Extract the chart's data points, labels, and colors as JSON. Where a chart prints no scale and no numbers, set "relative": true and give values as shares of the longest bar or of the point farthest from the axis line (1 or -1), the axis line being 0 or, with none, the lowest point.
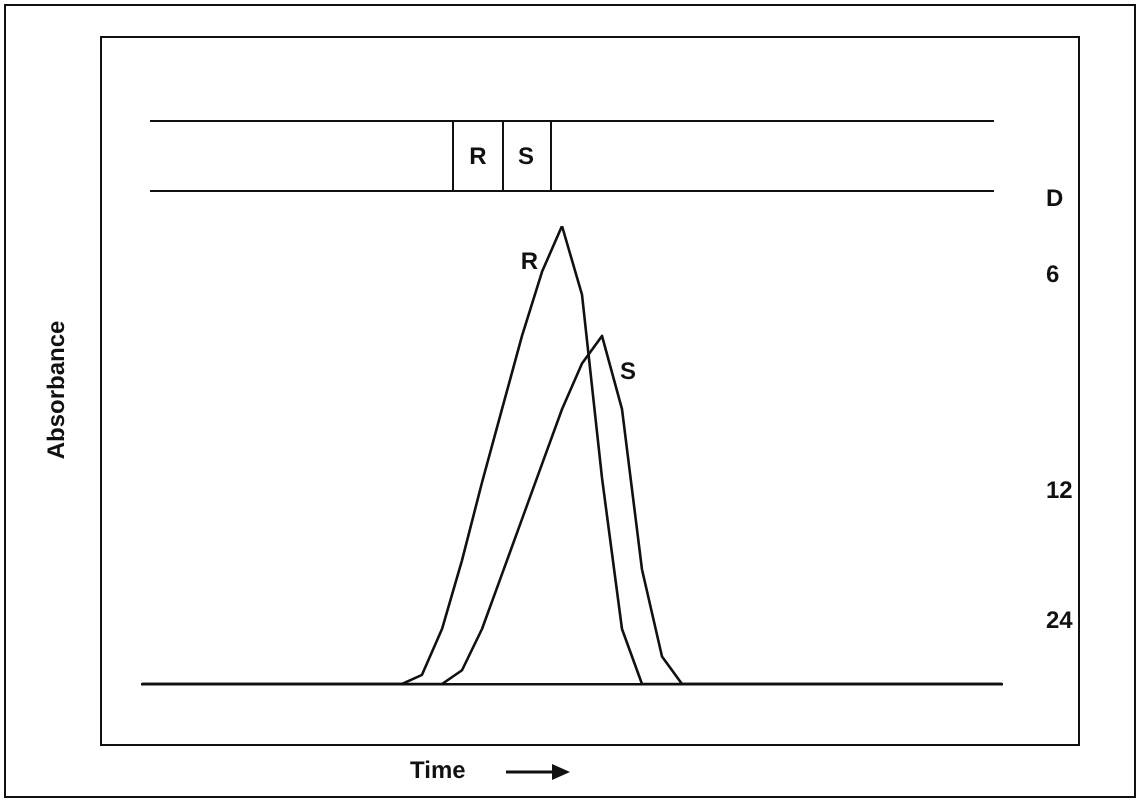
{
  "chart_data": {
    "type": "line",
    "relative": true,
    "xlabel": "Time",
    "ylabel": "Absorbance",
    "legend": false,
    "grid": false,
    "marker": "none",
    "line_style": "solid",
    "categories": [
      null,
      null,
      null,
      null,
      null,
      null,
      null,
      null,
      null,
      null,
      null,
      null,
      null,
      null,
      null,
      null,
      null,
      null,
      null,
      null,
      null,
      null,
      null,
      null,
      null,
      null,
      null,
      null,
      null,
      null,
      null,
      null,
      null,
      null,
      null,
      null,
      null,
      null,
      null,
      null,
      null,
      null,
      null,
      null
    ],
    "series": [
      {
        "name": "R",
        "color": "#111111",
        "values": [
          0,
          0,
          0,
          0,
          0,
          0,
          0,
          0,
          0,
          0,
          0,
          0,
          0,
          0,
          0.02,
          0.12,
          0.27,
          0.44,
          0.6,
          0.76,
          0.9,
          1,
          0.85,
          0.45,
          0.12,
          0,
          0,
          0,
          0,
          0,
          0,
          0,
          0,
          0,
          0,
          0,
          0,
          0,
          0,
          0,
          0,
          0,
          0,
          0
        ]
      },
      {
        "name": "S",
        "color": "#111111",
        "values": [
          0,
          0,
          0,
          0,
          0,
          0,
          0,
          0,
          0,
          0,
          0,
          0,
          0,
          0,
          0,
          0,
          0.03,
          0.12,
          0.24,
          0.36,
          0.48,
          0.6,
          0.7,
          0.76,
          0.6,
          0.25,
          0.06,
          0,
          0,
          0,
          0,
          0,
          0,
          0,
          0,
          0,
          0,
          0,
          0,
          0,
          0,
          0,
          0,
          0
        ]
      }
    ],
    "annotations": [
      "R",
      "S",
      "D",
      "6",
      "12",
      "24"
    ]
  }
}
